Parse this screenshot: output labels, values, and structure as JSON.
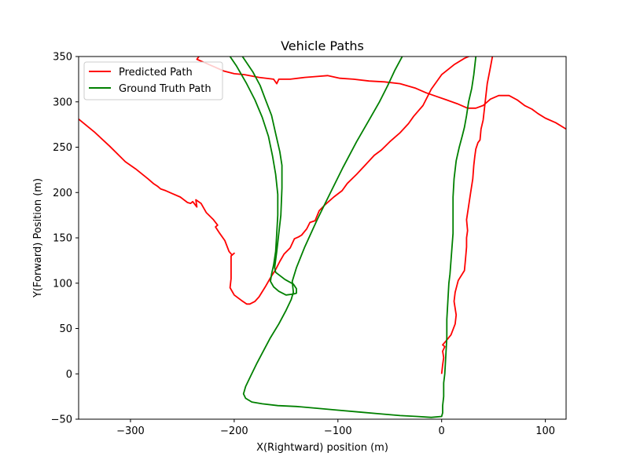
{
  "chart_data": {
    "type": "line",
    "title": "Vehicle Paths",
    "xlabel": "X(Rightward) position (m)",
    "ylabel": "Y(Forward) Position (m)",
    "xlim": [
      -350,
      120
    ],
    "ylim": [
      -50,
      350
    ],
    "xticks": [
      -300,
      -200,
      -100,
      0,
      100
    ],
    "yticks": [
      -50,
      0,
      50,
      100,
      150,
      200,
      250,
      300,
      350
    ],
    "xtick_labels": [
      "−300",
      "−200",
      "−100",
      "0",
      "100"
    ],
    "yticks_labels": [
      "−50",
      "0",
      "50",
      "100",
      "150",
      "200",
      "250",
      "300",
      "350"
    ],
    "grid": false,
    "legend_position": "upper-left",
    "series": [
      {
        "name": "Predicted Path",
        "color": "#ff0000",
        "segments": [
          [
            [
              -350,
              281
            ],
            [
              -335,
              267
            ],
            [
              -320,
              251
            ],
            [
              -305,
              234
            ],
            [
              -295,
              226
            ],
            [
              -283,
              215
            ],
            [
              -278,
              210
            ],
            [
              -274,
              207
            ],
            [
              -271,
              204
            ],
            [
              -266,
              202
            ],
            [
              -260,
              199
            ],
            [
              -252,
              195
            ],
            [
              -245,
              189
            ],
            [
              -242,
              188
            ],
            [
              -240,
              190
            ],
            [
              -236,
              184
            ],
            [
              -237,
              192
            ],
            [
              -232,
              188
            ],
            [
              -227,
              178
            ],
            [
              -220,
              170
            ],
            [
              -216,
              164
            ],
            [
              -218,
              162
            ],
            [
              -214,
              155
            ],
            [
              -209,
              147
            ],
            [
              -205,
              135
            ],
            [
              -202,
              131
            ],
            [
              -200,
              133
            ],
            [
              -203,
              130
            ],
            [
              -203,
              105
            ],
            [
              -204,
              95
            ],
            [
              -200,
              87
            ],
            [
              -193,
              81
            ],
            [
              -188,
              77
            ],
            [
              -185,
              77
            ],
            [
              -180,
              80
            ],
            [
              -176,
              85
            ],
            [
              -170,
              96
            ],
            [
              -165,
              106
            ],
            [
              -160,
              115
            ],
            [
              -156,
              124
            ],
            [
              -152,
              132
            ],
            [
              -146,
              139
            ],
            [
              -142,
              149
            ],
            [
              -138,
              151
            ],
            [
              -135,
              153
            ],
            [
              -130,
              160
            ],
            [
              -127,
              167
            ],
            [
              -122,
              169
            ],
            [
              -118,
              180
            ],
            [
              -112,
              187
            ],
            [
              -104,
              195
            ],
            [
              -96,
              202
            ],
            [
              -91,
              210
            ],
            [
              -82,
              220
            ],
            [
              -73,
              231
            ],
            [
              -65,
              241
            ],
            [
              -58,
              247
            ],
            [
              -50,
              256
            ],
            [
              -46,
              260
            ],
            [
              -40,
              266
            ],
            [
              -32,
              276
            ],
            [
              -27,
              284
            ],
            [
              -18,
              296
            ],
            [
              -10,
              314
            ],
            [
              0,
              330
            ],
            [
              12,
              341
            ],
            [
              22,
              348
            ],
            [
              30,
              352
            ]
          ],
          [
            [
              -234,
              350
            ],
            [
              -236,
              347
            ],
            [
              -220,
              339
            ],
            [
              -210,
              334
            ],
            [
              -200,
              331
            ],
            [
              -190,
              330
            ],
            [
              -176,
              327
            ],
            [
              -162,
              325
            ],
            [
              -159,
              320
            ],
            [
              -157,
              325
            ],
            [
              -146,
              325
            ],
            [
              -132,
              327
            ],
            [
              -120,
              328
            ],
            [
              -110,
              329
            ],
            [
              -98,
              326
            ],
            [
              -85,
              325
            ],
            [
              -70,
              323
            ],
            [
              -55,
              322
            ],
            [
              -40,
              320
            ],
            [
              -25,
              315
            ],
            [
              -15,
              310
            ],
            [
              -5,
              306
            ],
            [
              5,
              302
            ],
            [
              15,
              298
            ],
            [
              25,
              293
            ],
            [
              33,
              293
            ],
            [
              40,
              296
            ],
            [
              47,
              303
            ],
            [
              55,
              307
            ],
            [
              65,
              307
            ],
            [
              73,
              302
            ],
            [
              80,
              296
            ],
            [
              87,
              292
            ],
            [
              93,
              287
            ],
            [
              100,
              282
            ],
            [
              110,
              277
            ],
            [
              120,
              270
            ]
          ],
          [
            [
              0,
              0
            ],
            [
              1,
              10
            ],
            [
              2,
              18
            ],
            [
              1,
              25
            ],
            [
              3,
              30
            ],
            [
              1,
              32
            ],
            [
              4,
              36
            ],
            [
              9,
              43
            ],
            [
              13,
              55
            ],
            [
              14,
              65
            ],
            [
              12,
              80
            ],
            [
              13,
              90
            ],
            [
              16,
              103
            ],
            [
              22,
              114
            ],
            [
              23,
              126
            ],
            [
              24,
              140
            ],
            [
              24,
              150
            ],
            [
              25,
              158
            ],
            [
              24,
              170
            ],
            [
              26,
              185
            ],
            [
              28,
              200
            ],
            [
              30,
              215
            ],
            [
              31,
              230
            ],
            [
              32,
              240
            ],
            [
              33,
              248
            ],
            [
              35,
              255
            ],
            [
              37,
              258
            ],
            [
              38,
              270
            ],
            [
              40,
              280
            ],
            [
              42,
              300
            ],
            [
              44,
              320
            ],
            [
              47,
              338
            ],
            [
              49,
              350
            ]
          ]
        ]
      },
      {
        "name": "Ground Truth Path",
        "color": "#008000",
        "segments": [
          [
            [
              -192,
              350
            ],
            [
              -182,
              333
            ],
            [
              -175,
              318
            ],
            [
              -170,
              303
            ],
            [
              -164,
              285
            ],
            [
              -160,
              265
            ],
            [
              -156,
              245
            ],
            [
              -154,
              230
            ],
            [
              -154,
              205
            ],
            [
              -155,
              175
            ],
            [
              -157,
              155
            ],
            [
              -159,
              135
            ],
            [
              -161,
              117
            ],
            [
              -160,
              112
            ],
            [
              -151,
              104
            ],
            [
              -143,
              99
            ],
            [
              -140,
              94
            ],
            [
              -140,
              89
            ],
            [
              -143,
              88
            ],
            [
              -150,
              87
            ],
            [
              -157,
              91
            ],
            [
              -162,
              96
            ],
            [
              -165,
              102
            ],
            [
              -164,
              110
            ],
            [
              -162,
              120
            ],
            [
              -160,
              135
            ],
            [
              -159,
              155
            ],
            [
              -158,
              175
            ],
            [
              -158,
              198
            ],
            [
              -160,
              220
            ],
            [
              -163,
              240
            ],
            [
              -167,
              262
            ],
            [
              -173,
              283
            ],
            [
              -180,
              302
            ],
            [
              -188,
              320
            ],
            [
              -198,
              340
            ],
            [
              -204,
              350
            ]
          ],
          [
            [
              -38,
              350
            ],
            [
              -45,
              335
            ],
            [
              -52,
              318
            ],
            [
              -60,
              300
            ],
            [
              -70,
              280
            ],
            [
              -82,
              256
            ],
            [
              -95,
              228
            ],
            [
              -108,
              198
            ],
            [
              -120,
              170
            ],
            [
              -132,
              140
            ],
            [
              -140,
              117
            ],
            [
              -144,
              102
            ],
            [
              -143,
              90
            ],
            [
              -145,
              82
            ],
            [
              -150,
              70
            ],
            [
              -157,
              55
            ],
            [
              -165,
              40
            ],
            [
              -172,
              25
            ],
            [
              -178,
              12
            ],
            [
              -184,
              -2
            ],
            [
              -189,
              -14
            ],
            [
              -191,
              -22
            ],
            [
              -189,
              -27
            ],
            [
              -183,
              -31
            ],
            [
              -173,
              -33
            ],
            [
              -158,
              -35
            ],
            [
              -140,
              -36
            ],
            [
              -120,
              -38
            ],
            [
              -100,
              -40
            ],
            [
              -80,
              -42
            ],
            [
              -60,
              -44
            ],
            [
              -40,
              -46
            ],
            [
              -24,
              -47
            ],
            [
              -10,
              -48
            ],
            [
              0,
              -47
            ],
            [
              1,
              -43
            ],
            [
              1,
              -35
            ],
            [
              2,
              -25
            ],
            [
              2,
              -10
            ],
            [
              3,
              0
            ],
            [
              4,
              20
            ],
            [
              5,
              40
            ],
            [
              5,
              60
            ],
            [
              6,
              80
            ],
            [
              7,
              100
            ],
            [
              8,
              110
            ],
            [
              9,
              125
            ],
            [
              10,
              140
            ],
            [
              11,
              155
            ],
            [
              11,
              175
            ],
            [
              11,
              195
            ],
            [
              12,
              215
            ],
            [
              14,
              235
            ],
            [
              17,
              250
            ],
            [
              20,
              263
            ],
            [
              22,
              272
            ],
            [
              24,
              285
            ],
            [
              26,
              300
            ],
            [
              29,
              315
            ],
            [
              31,
              330
            ],
            [
              32,
              340
            ],
            [
              33,
              350
            ]
          ]
        ]
      }
    ]
  }
}
